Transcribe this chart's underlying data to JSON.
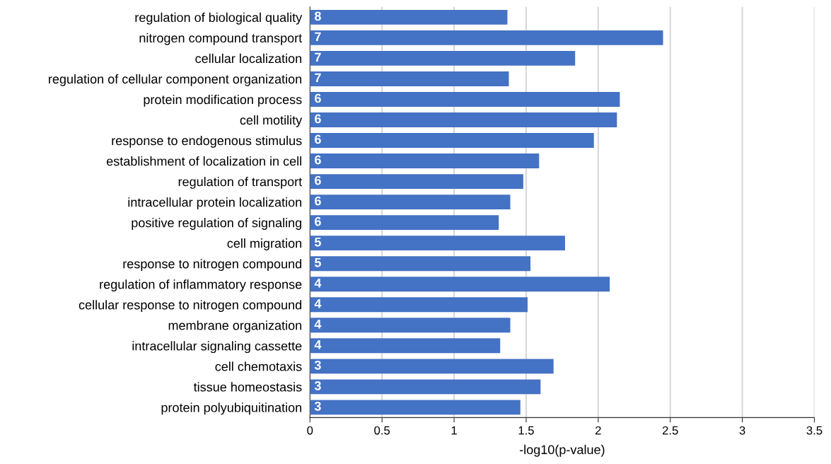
{
  "chart_data": {
    "type": "bar",
    "orientation": "horizontal",
    "xlabel": "-log10(p-value)",
    "categories": [
      "regulation of biological quality",
      "nitrogen compound transport",
      "cellular localization",
      "regulation of cellular component organization",
      "protein modification process",
      "cell motility",
      "response to endogenous stimulus",
      "establishment of localization in cell",
      "regulation of transport",
      "intracellular protein localization",
      "positive regulation of signaling",
      "cell migration",
      "response to nitrogen compound",
      "regulation of inflammatory response",
      "cellular response to nitrogen compound",
      "membrane organization",
      "intracellular signaling cassette",
      "cell chemotaxis",
      "tissue homeostasis",
      "protein polyubiquitination"
    ],
    "values": [
      1.37,
      2.45,
      1.84,
      1.38,
      2.15,
      2.13,
      1.97,
      1.59,
      1.48,
      1.39,
      1.31,
      1.77,
      1.53,
      2.08,
      1.51,
      1.39,
      1.32,
      1.69,
      1.6,
      1.46
    ],
    "color": "#4472c4",
    "xlim": [
      0,
      3.5
    ],
    "xticks": [
      0,
      0.5,
      1,
      1.5,
      2,
      2.5,
      3,
      3.5
    ],
    "grid": "x",
    "annotations": [
      "8",
      "7",
      "7",
      "7",
      "6",
      "6",
      "6",
      "6",
      "6",
      "6",
      "6",
      "5",
      "5",
      "4",
      "4",
      "4",
      "4",
      "3",
      "3",
      "3"
    ]
  }
}
